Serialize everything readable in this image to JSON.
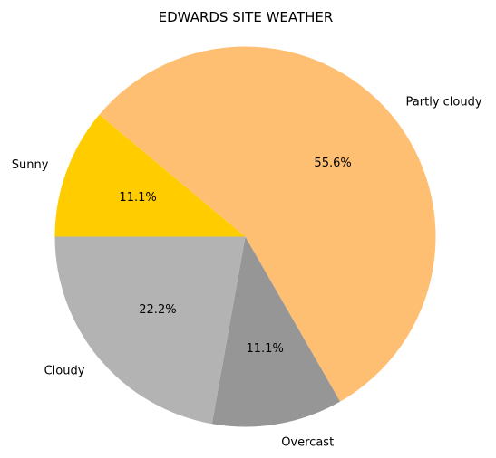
{
  "chart_data": {
    "type": "pie",
    "title": "EDWARDS SITE WEATHER",
    "categories": [
      "Sunny",
      "Partly cloudy",
      "Overcast",
      "Cloudy"
    ],
    "values": [
      11.1,
      55.6,
      11.1,
      22.2
    ],
    "labels": [
      "11.1%",
      "55.6%",
      "11.1%",
      "22.2%"
    ],
    "colors": [
      "#ffcc00",
      "#ffbf73",
      "#969696",
      "#b3b3b3"
    ],
    "start_angle_deg": 180,
    "direction": "clockwise"
  }
}
